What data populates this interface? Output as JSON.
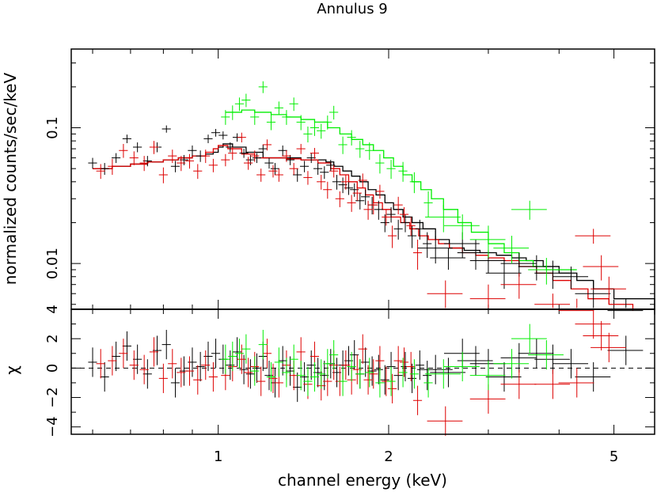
{
  "chart_data": {
    "type": "scatter",
    "title": "Annulus 9",
    "xlabel": "channel energy (keV)",
    "x_scale": "log",
    "xlim": [
      0.55,
      5.9
    ],
    "x_ticks": [
      {
        "value": 1,
        "label": "1"
      },
      {
        "value": 2,
        "label": "2"
      },
      {
        "value": 5,
        "label": "5"
      }
    ],
    "top_panel": {
      "ylabel": "normalized counts/sec/keV",
      "y_scale": "log",
      "ylim": [
        0.0046,
        0.38
      ],
      "y_ticks": [
        {
          "value": 0.01,
          "label": "0.01"
        },
        {
          "value": 0.1,
          "label": "0.1"
        }
      ]
    },
    "bottom_panel": {
      "ylabel": "χ",
      "ylim": [
        -4.5,
        4.0
      ],
      "y_ticks": [
        {
          "value": -4,
          "label": "−4"
        },
        {
          "value": -2,
          "label": "−2"
        },
        {
          "value": 0,
          "label": "0"
        },
        {
          "value": 2,
          "label": "2"
        },
        {
          "value": 4,
          "label": "4"
        }
      ],
      "zero_line": "dashed"
    },
    "series": [
      {
        "name": "black",
        "color": "#000000",
        "data": [
          [
            0.6,
            0.055,
            0.005,
            0.4
          ],
          [
            0.63,
            0.05,
            0.005,
            -0.6
          ],
          [
            0.66,
            0.06,
            0.005,
            0.8
          ],
          [
            0.69,
            0.083,
            0.006,
            1.5
          ],
          [
            0.72,
            0.072,
            0.006,
            0.6
          ],
          [
            0.75,
            0.057,
            0.005,
            -0.4
          ],
          [
            0.78,
            0.072,
            0.006,
            1.2
          ],
          [
            0.81,
            0.098,
            0.006,
            1.6
          ],
          [
            0.84,
            0.052,
            0.005,
            -1.0
          ],
          [
            0.87,
            0.058,
            0.005,
            -0.2
          ],
          [
            0.9,
            0.068,
            0.006,
            0.4
          ],
          [
            0.93,
            0.062,
            0.006,
            0.1
          ],
          [
            0.96,
            0.083,
            0.006,
            0.8
          ],
          [
            0.99,
            0.092,
            0.006,
            1.0
          ],
          [
            1.02,
            0.088,
            0.006,
            0.6
          ],
          [
            1.05,
            0.072,
            0.006,
            0.2
          ],
          [
            1.08,
            0.085,
            0.006,
            1.1
          ],
          [
            1.11,
            0.065,
            0.005,
            -0.1
          ],
          [
            1.14,
            0.058,
            0.005,
            -0.4
          ],
          [
            1.17,
            0.06,
            0.005,
            0.0
          ],
          [
            1.2,
            0.07,
            0.005,
            0.8
          ],
          [
            1.23,
            0.055,
            0.005,
            -0.5
          ],
          [
            1.26,
            0.05,
            0.005,
            -1.0
          ],
          [
            1.3,
            0.068,
            0.006,
            0.5
          ],
          [
            1.34,
            0.058,
            0.005,
            -0.2
          ],
          [
            1.38,
            0.045,
            0.005,
            -1.3
          ],
          [
            1.42,
            0.052,
            0.005,
            -0.6
          ],
          [
            1.46,
            0.06,
            0.005,
            0.2
          ],
          [
            1.5,
            0.05,
            0.005,
            -0.3
          ],
          [
            1.54,
            0.047,
            0.005,
            -0.5
          ],
          [
            1.58,
            0.053,
            0.005,
            0.3
          ],
          [
            1.62,
            0.04,
            0.005,
            -0.3
          ],
          [
            1.66,
            0.038,
            0.005,
            0.2
          ],
          [
            1.7,
            0.036,
            0.004,
            0.5
          ],
          [
            1.74,
            0.035,
            0.004,
            0.9
          ],
          [
            1.78,
            0.029,
            0.004,
            -0.4
          ],
          [
            1.82,
            0.031,
            0.004,
            0.4
          ],
          [
            1.87,
            0.027,
            0.004,
            -0.2
          ],
          [
            1.92,
            0.025,
            0.004,
            -0.1
          ],
          [
            1.97,
            0.02,
            0.003,
            -0.8
          ],
          [
            2.02,
            0.023,
            0.003,
            0.1
          ],
          [
            2.08,
            0.018,
            0.003,
            -0.5
          ],
          [
            2.14,
            0.02,
            0.003,
            0.1
          ],
          [
            2.2,
            0.016,
            0.003,
            -0.7
          ],
          [
            2.27,
            0.018,
            0.003,
            0.2
          ],
          [
            2.34,
            0.014,
            0.003,
            -0.5
          ],
          [
            2.42,
            0.013,
            0.003,
            -0.1
          ],
          [
            2.55,
            0.011,
            0.002,
            -0.3
          ],
          [
            2.7,
            0.014,
            0.003,
            1.0
          ],
          [
            2.85,
            0.012,
            0.003,
            0.5
          ],
          [
            3.0,
            0.0105,
            0.002,
            0.3
          ],
          [
            3.2,
            0.0085,
            0.002,
            -0.6
          ],
          [
            3.4,
            0.01,
            0.002,
            0.7
          ],
          [
            3.65,
            0.0095,
            0.002,
            1.0
          ],
          [
            3.9,
            0.0085,
            0.002,
            0.6
          ],
          [
            4.2,
            0.008,
            0.0015,
            0.3
          ],
          [
            4.6,
            0.006,
            0.0015,
            -0.6
          ],
          [
            5.25,
            0.0045,
            0.001,
            1.2
          ]
        ]
      },
      {
        "name": "red",
        "color": "#dd0000",
        "data": [
          [
            0.62,
            0.048,
            0.006,
            0.3
          ],
          [
            0.65,
            0.052,
            0.007,
            0.5
          ],
          [
            0.68,
            0.068,
            0.008,
            1.0
          ],
          [
            0.71,
            0.06,
            0.007,
            0.2
          ],
          [
            0.74,
            0.055,
            0.007,
            -0.1
          ],
          [
            0.77,
            0.072,
            0.008,
            1.1
          ],
          [
            0.8,
            0.045,
            0.006,
            -0.7
          ],
          [
            0.83,
            0.062,
            0.007,
            0.3
          ],
          [
            0.86,
            0.055,
            0.007,
            -0.3
          ],
          [
            0.89,
            0.057,
            0.007,
            -0.2
          ],
          [
            0.92,
            0.048,
            0.006,
            -0.8
          ],
          [
            0.95,
            0.062,
            0.007,
            0.2
          ],
          [
            0.98,
            0.053,
            0.006,
            -0.6
          ],
          [
            1.03,
            0.058,
            0.006,
            -0.5
          ],
          [
            1.06,
            0.065,
            0.007,
            0.1
          ],
          [
            1.1,
            0.085,
            0.007,
            0.6
          ],
          [
            1.13,
            0.055,
            0.006,
            -0.3
          ],
          [
            1.16,
            0.062,
            0.006,
            0.1
          ],
          [
            1.19,
            0.045,
            0.005,
            -0.9
          ],
          [
            1.22,
            0.075,
            0.007,
            1.0
          ],
          [
            1.25,
            0.048,
            0.005,
            -0.7
          ],
          [
            1.28,
            0.045,
            0.005,
            -1.0
          ],
          [
            1.32,
            0.062,
            0.006,
            0.2
          ],
          [
            1.36,
            0.05,
            0.005,
            -0.5
          ],
          [
            1.4,
            0.07,
            0.006,
            1.1
          ],
          [
            1.44,
            0.043,
            0.005,
            -1.1
          ],
          [
            1.48,
            0.065,
            0.006,
            0.8
          ],
          [
            1.52,
            0.04,
            0.005,
            -1.2
          ],
          [
            1.56,
            0.035,
            0.005,
            -0.9
          ],
          [
            1.6,
            0.048,
            0.005,
            0.2
          ],
          [
            1.64,
            0.03,
            0.004,
            -0.9
          ],
          [
            1.68,
            0.04,
            0.005,
            0.2
          ],
          [
            1.72,
            0.028,
            0.004,
            -0.8
          ],
          [
            1.76,
            0.033,
            0.004,
            -0.1
          ],
          [
            1.8,
            0.041,
            0.005,
            1.3
          ],
          [
            1.84,
            0.025,
            0.004,
            -0.8
          ],
          [
            1.88,
            0.027,
            0.004,
            -0.4
          ],
          [
            1.93,
            0.034,
            0.004,
            0.5
          ],
          [
            1.98,
            0.022,
            0.003,
            -0.9
          ],
          [
            2.03,
            0.016,
            0.003,
            -1.4
          ],
          [
            2.08,
            0.027,
            0.004,
            0.5
          ],
          [
            2.13,
            0.023,
            0.003,
            0.4
          ],
          [
            2.19,
            0.019,
            0.003,
            0.1
          ],
          [
            2.25,
            0.012,
            0.003,
            -2.2
          ],
          [
            2.52,
            0.006,
            0.0015,
            -3.6
          ],
          [
            3.0,
            0.0055,
            0.0015,
            -2.1
          ],
          [
            3.4,
            0.007,
            0.0015,
            -1.1
          ],
          [
            3.9,
            0.005,
            0.001,
            -1.1
          ],
          [
            4.3,
            0.0045,
            0.001,
            -1.0
          ],
          [
            4.6,
            0.016,
            0.002,
            3.0
          ],
          [
            4.75,
            0.0095,
            0.002,
            2.2
          ],
          [
            4.9,
            0.0065,
            0.0015,
            1.4
          ]
        ]
      },
      {
        "name": "green",
        "color": "#00ee00",
        "data": [
          [
            1.03,
            0.12,
            0.015,
            0.6
          ],
          [
            1.06,
            0.13,
            0.016,
            0.8
          ],
          [
            1.09,
            0.15,
            0.017,
            1.0
          ],
          [
            1.12,
            0.16,
            0.018,
            1.3
          ],
          [
            1.16,
            0.12,
            0.015,
            -0.2
          ],
          [
            1.2,
            0.2,
            0.02,
            1.6
          ],
          [
            1.24,
            0.11,
            0.014,
            -0.6
          ],
          [
            1.28,
            0.14,
            0.016,
            0.4
          ],
          [
            1.32,
            0.12,
            0.015,
            -0.3
          ],
          [
            1.36,
            0.15,
            0.017,
            0.6
          ],
          [
            1.4,
            0.11,
            0.014,
            -0.5
          ],
          [
            1.44,
            0.09,
            0.012,
            -0.9
          ],
          [
            1.48,
            0.1,
            0.013,
            -0.6
          ],
          [
            1.52,
            0.095,
            0.012,
            -0.4
          ],
          [
            1.56,
            0.11,
            0.013,
            0.3
          ],
          [
            1.6,
            0.13,
            0.015,
            0.9
          ],
          [
            1.66,
            0.075,
            0.011,
            -0.9
          ],
          [
            1.72,
            0.085,
            0.011,
            0.1
          ],
          [
            1.78,
            0.07,
            0.01,
            -0.4
          ],
          [
            1.85,
            0.068,
            0.01,
            -0.3
          ],
          [
            1.93,
            0.055,
            0.009,
            -1.0
          ],
          [
            2.02,
            0.05,
            0.008,
            -0.9
          ],
          [
            2.12,
            0.048,
            0.008,
            -0.3
          ],
          [
            2.22,
            0.04,
            0.007,
            -0.4
          ],
          [
            2.35,
            0.028,
            0.006,
            -1.0
          ],
          [
            2.5,
            0.022,
            0.005,
            -0.4
          ],
          [
            2.7,
            0.019,
            0.004,
            0.1
          ],
          [
            3.0,
            0.015,
            0.004,
            -0.5
          ],
          [
            3.3,
            0.013,
            0.003,
            0.3
          ],
          [
            3.55,
            0.025,
            0.004,
            2.0
          ],
          [
            3.8,
            0.009,
            0.002,
            0.9
          ]
        ]
      }
    ],
    "models": [
      {
        "name": "black-model",
        "color": "#000000",
        "y": [
          0.05,
          0.052,
          0.054,
          0.056,
          0.058,
          0.06,
          0.062,
          0.064,
          0.066,
          0.072,
          0.076,
          0.072,
          0.066,
          0.06,
          0.06,
          0.058,
          0.058,
          0.056,
          0.052,
          0.048,
          0.044,
          0.04,
          0.035,
          0.032,
          0.028,
          0.025,
          0.022,
          0.02,
          0.018,
          0.015,
          0.013,
          0.0125,
          0.012,
          0.0115,
          0.011,
          0.0105,
          0.0095,
          0.0085,
          0.0075,
          0.0065,
          0.0055,
          0.0042
        ],
        "x": [
          0.6,
          0.65,
          0.7,
          0.75,
          0.8,
          0.85,
          0.9,
          0.95,
          0.98,
          1.0,
          1.02,
          1.06,
          1.12,
          1.2,
          1.3,
          1.4,
          1.5,
          1.55,
          1.6,
          1.66,
          1.72,
          1.78,
          1.84,
          1.9,
          1.97,
          2.04,
          2.12,
          2.2,
          2.3,
          2.42,
          2.56,
          2.72,
          2.9,
          3.1,
          3.3,
          3.5,
          3.75,
          4.0,
          4.3,
          4.6,
          5.0,
          5.9
        ]
      },
      {
        "name": "red-model",
        "color": "#dd0000",
        "y": [
          0.05,
          0.052,
          0.054,
          0.056,
          0.058,
          0.06,
          0.062,
          0.066,
          0.07,
          0.074,
          0.07,
          0.064,
          0.06,
          0.06,
          0.059,
          0.058,
          0.055,
          0.05,
          0.045,
          0.04,
          0.036,
          0.032,
          0.028,
          0.025,
          0.022,
          0.02,
          0.018,
          0.016,
          0.015,
          0.014,
          0.013,
          0.012,
          0.0115,
          0.011,
          0.0105,
          0.0095,
          0.0085,
          0.0075,
          0.0065,
          0.0055,
          0.005,
          0.0045
        ],
        "x": [
          0.6,
          0.65,
          0.7,
          0.75,
          0.8,
          0.85,
          0.9,
          0.95,
          0.98,
          1.0,
          1.04,
          1.1,
          1.16,
          1.24,
          1.32,
          1.4,
          1.5,
          1.58,
          1.64,
          1.7,
          1.76,
          1.82,
          1.88,
          1.95,
          2.02,
          2.1,
          2.18,
          2.26,
          2.35,
          2.45,
          2.56,
          2.7,
          2.85,
          3.0,
          3.2,
          3.4,
          3.65,
          3.9,
          4.2,
          4.5,
          4.9,
          5.4
        ]
      },
      {
        "name": "green-model",
        "color": "#00ee00",
        "y": [
          0.13,
          0.135,
          0.13,
          0.125,
          0.12,
          0.115,
          0.11,
          0.1,
          0.09,
          0.082,
          0.075,
          0.068,
          0.06,
          0.052,
          0.045,
          0.04,
          0.035,
          0.03,
          0.025,
          0.02,
          0.017,
          0.014,
          0.012,
          0.0105,
          0.0095,
          0.009,
          0.009
        ],
        "x": [
          1.03,
          1.1,
          1.16,
          1.24,
          1.32,
          1.4,
          1.48,
          1.56,
          1.64,
          1.72,
          1.8,
          1.88,
          1.96,
          2.04,
          2.12,
          2.2,
          2.28,
          2.38,
          2.5,
          2.65,
          2.8,
          3.0,
          3.2,
          3.4,
          3.6,
          3.8,
          4.3
        ]
      }
    ]
  }
}
